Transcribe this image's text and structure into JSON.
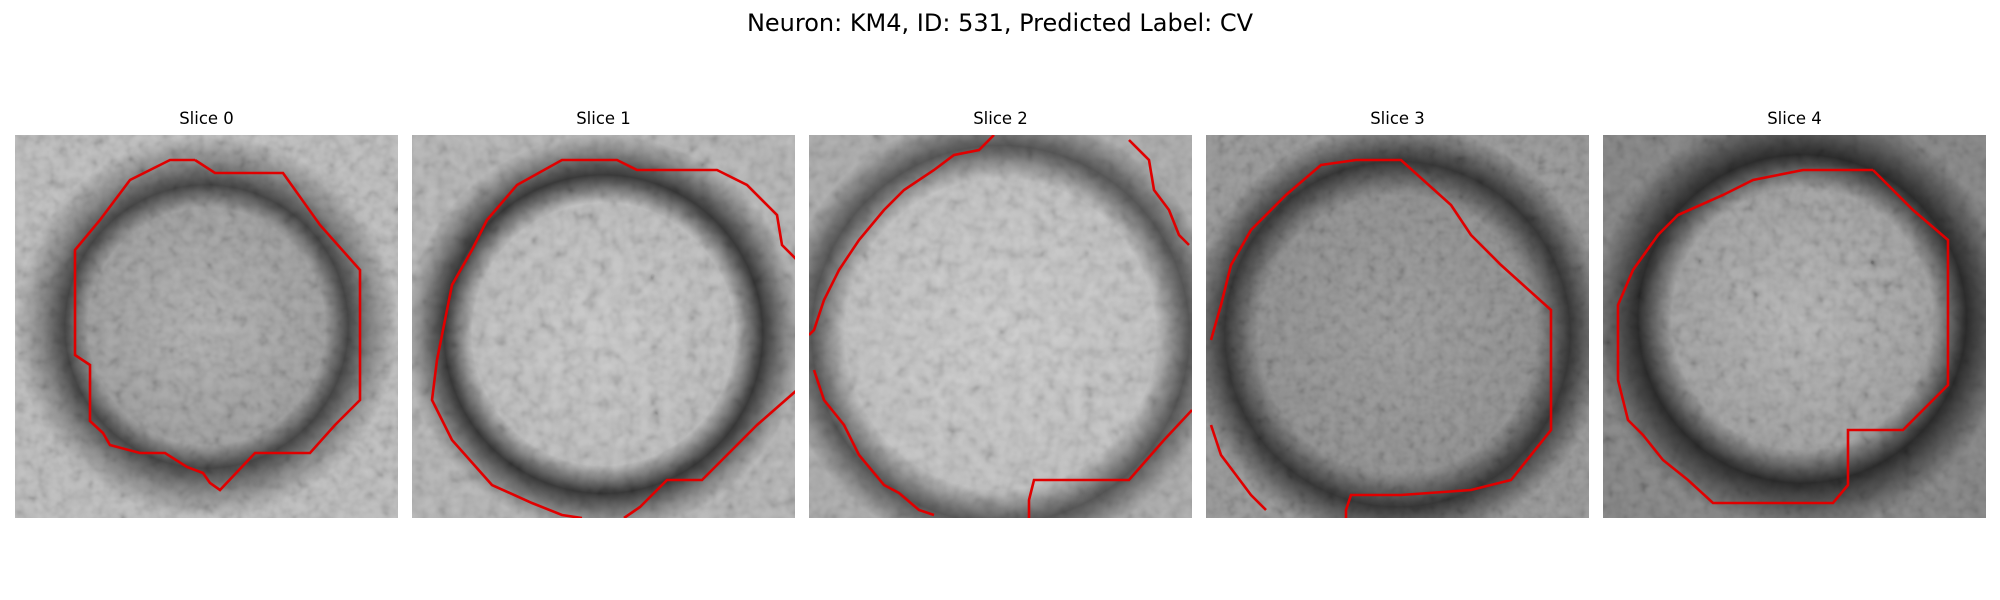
{
  "figure": {
    "title": "Neuron: KM4, ID: 531, Predicted Label: CV",
    "contour_color": "#e00000"
  },
  "panels": [
    {
      "title": "Slice 0"
    },
    {
      "title": "Slice 1"
    },
    {
      "title": "Slice 2"
    },
    {
      "title": "Slice 3"
    },
    {
      "title": "Slice 4"
    }
  ]
}
